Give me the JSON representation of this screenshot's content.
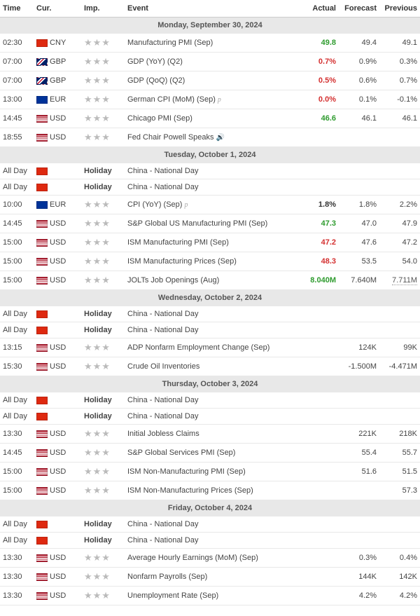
{
  "columns": {
    "time": "Time",
    "cur": "Cur.",
    "imp": "Imp.",
    "event": "Event",
    "actual": "Actual",
    "forecast": "Forecast",
    "previous": "Previous"
  },
  "flags": {
    "CNY": "#de2910",
    "GBP": "linear-gradient(135deg,#012169 25%,#fff 25%,#fff 35%,#c8102e 35%,#c8102e 45%,#fff 45%,#fff 55%,#012169 55%)",
    "EUR": "#003399",
    "USD": "linear-gradient(to bottom,#b22234 0%,#b22234 15%,#fff 15%,#fff 30%,#b22234 30%,#b22234 45%,#fff 45%,#fff 60%,#b22234 60%,#b22234 75%,#fff 75%,#fff 90%,#b22234 90%)",
    "CN": "#de2910",
    "EU": "#003399"
  },
  "colors": {
    "green": "#2e9b2e",
    "red": "#d43030",
    "grey_row": "#e8e8e8"
  },
  "days": [
    {
      "header": "Monday, September 30, 2024",
      "rows": [
        {
          "time": "02:30",
          "flag": "CNY",
          "cur": "CNY",
          "stars": 3,
          "event": "Manufacturing PMI (Sep)",
          "actual": "49.8",
          "actual_class": "green",
          "forecast": "49.4",
          "previous": "49.1"
        },
        {
          "time": "07:00",
          "flag": "GBP",
          "cur": "GBP",
          "stars": 3,
          "event": "GDP (YoY) (Q2)",
          "actual": "0.7%",
          "actual_class": "red",
          "forecast": "0.9%",
          "previous": "0.3%"
        },
        {
          "time": "07:00",
          "flag": "GBP",
          "cur": "GBP",
          "stars": 3,
          "event": "GDP (QoQ) (Q2)",
          "actual": "0.5%",
          "actual_class": "red",
          "forecast": "0.6%",
          "previous": "0.7%"
        },
        {
          "time": "13:00",
          "flag": "EUR",
          "cur": "EUR",
          "stars": 3,
          "event": "German CPI (MoM) (Sep)",
          "prelim": true,
          "actual": "0.0%",
          "actual_class": "red",
          "forecast": "0.1%",
          "previous": "-0.1%"
        },
        {
          "time": "14:45",
          "flag": "USD",
          "cur": "USD",
          "stars": 3,
          "event": "Chicago PMI (Sep)",
          "actual": "46.6",
          "actual_class": "green",
          "forecast": "46.1",
          "previous": "46.1"
        },
        {
          "time": "18:55",
          "flag": "USD",
          "cur": "USD",
          "stars": 3,
          "event": "Fed Chair Powell Speaks",
          "speaker": true
        }
      ]
    },
    {
      "header": "Tuesday, October 1, 2024",
      "rows": [
        {
          "time": "All Day",
          "flag": "CN",
          "holiday": true,
          "event": "China - National Day"
        },
        {
          "time": "All Day",
          "flag": "CN",
          "holiday": true,
          "event": "China - National Day"
        },
        {
          "time": "10:00",
          "flag": "EU",
          "cur": "EUR",
          "stars": 3,
          "event": "CPI (YoY) (Sep)",
          "prelim": true,
          "actual": "1.8%",
          "actual_class": "black",
          "forecast": "1.8%",
          "previous": "2.2%"
        },
        {
          "time": "14:45",
          "flag": "USD",
          "cur": "USD",
          "stars": 3,
          "event": "S&P Global US Manufacturing PMI (Sep)",
          "actual": "47.3",
          "actual_class": "green",
          "forecast": "47.0",
          "previous": "47.9"
        },
        {
          "time": "15:00",
          "flag": "USD",
          "cur": "USD",
          "stars": 3,
          "event": "ISM Manufacturing PMI (Sep)",
          "actual": "47.2",
          "actual_class": "red",
          "forecast": "47.6",
          "previous": "47.2"
        },
        {
          "time": "15:00",
          "flag": "USD",
          "cur": "USD",
          "stars": 3,
          "event": "ISM Manufacturing Prices (Sep)",
          "actual": "48.3",
          "actual_class": "red",
          "forecast": "53.5",
          "previous": "54.0"
        },
        {
          "time": "15:00",
          "flag": "USD",
          "cur": "USD",
          "stars": 3,
          "event": "JOLTs Job Openings (Aug)",
          "actual": "8.040M",
          "actual_class": "green",
          "forecast": "7.640M",
          "previous": "7.711M",
          "previous_link": true
        }
      ]
    },
    {
      "header": "Wednesday, October 2, 2024",
      "rows": [
        {
          "time": "All Day",
          "flag": "CN",
          "holiday": true,
          "event": "China - National Day"
        },
        {
          "time": "All Day",
          "flag": "CN",
          "holiday": true,
          "event": "China - National Day"
        },
        {
          "time": "13:15",
          "flag": "USD",
          "cur": "USD",
          "stars": 3,
          "event": "ADP Nonfarm Employment Change (Sep)",
          "forecast": "124K",
          "previous": "99K"
        },
        {
          "time": "15:30",
          "flag": "USD",
          "cur": "USD",
          "stars": 3,
          "event": "Crude Oil Inventories",
          "forecast": "-1.500M",
          "previous": "-4.471M"
        }
      ]
    },
    {
      "header": "Thursday, October 3, 2024",
      "rows": [
        {
          "time": "All Day",
          "flag": "CN",
          "holiday": true,
          "event": "China - National Day"
        },
        {
          "time": "All Day",
          "flag": "CN",
          "holiday": true,
          "event": "China - National Day"
        },
        {
          "time": "13:30",
          "flag": "USD",
          "cur": "USD",
          "stars": 3,
          "event": "Initial Jobless Claims",
          "forecast": "221K",
          "previous": "218K"
        },
        {
          "time": "14:45",
          "flag": "USD",
          "cur": "USD",
          "stars": 3,
          "event": "S&P Global Services PMI (Sep)",
          "forecast": "55.4",
          "previous": "55.7"
        },
        {
          "time": "15:00",
          "flag": "USD",
          "cur": "USD",
          "stars": 3,
          "event": "ISM Non-Manufacturing PMI (Sep)",
          "forecast": "51.6",
          "previous": "51.5"
        },
        {
          "time": "15:00",
          "flag": "USD",
          "cur": "USD",
          "stars": 3,
          "event": "ISM Non-Manufacturing Prices (Sep)",
          "previous": "57.3"
        }
      ]
    },
    {
      "header": "Friday, October 4, 2024",
      "rows": [
        {
          "time": "All Day",
          "flag": "CN",
          "holiday": true,
          "event": "China - National Day"
        },
        {
          "time": "All Day",
          "flag": "CN",
          "holiday": true,
          "event": "China - National Day"
        },
        {
          "time": "13:30",
          "flag": "USD",
          "cur": "USD",
          "stars": 3,
          "event": "Average Hourly Earnings (MoM) (Sep)",
          "forecast": "0.3%",
          "previous": "0.4%"
        },
        {
          "time": "13:30",
          "flag": "USD",
          "cur": "USD",
          "stars": 3,
          "event": "Nonfarm Payrolls (Sep)",
          "forecast": "144K",
          "previous": "142K"
        },
        {
          "time": "13:30",
          "flag": "USD",
          "cur": "USD",
          "stars": 3,
          "event": "Unemployment Rate (Sep)",
          "forecast": "4.2%",
          "previous": "4.2%"
        }
      ]
    }
  ]
}
